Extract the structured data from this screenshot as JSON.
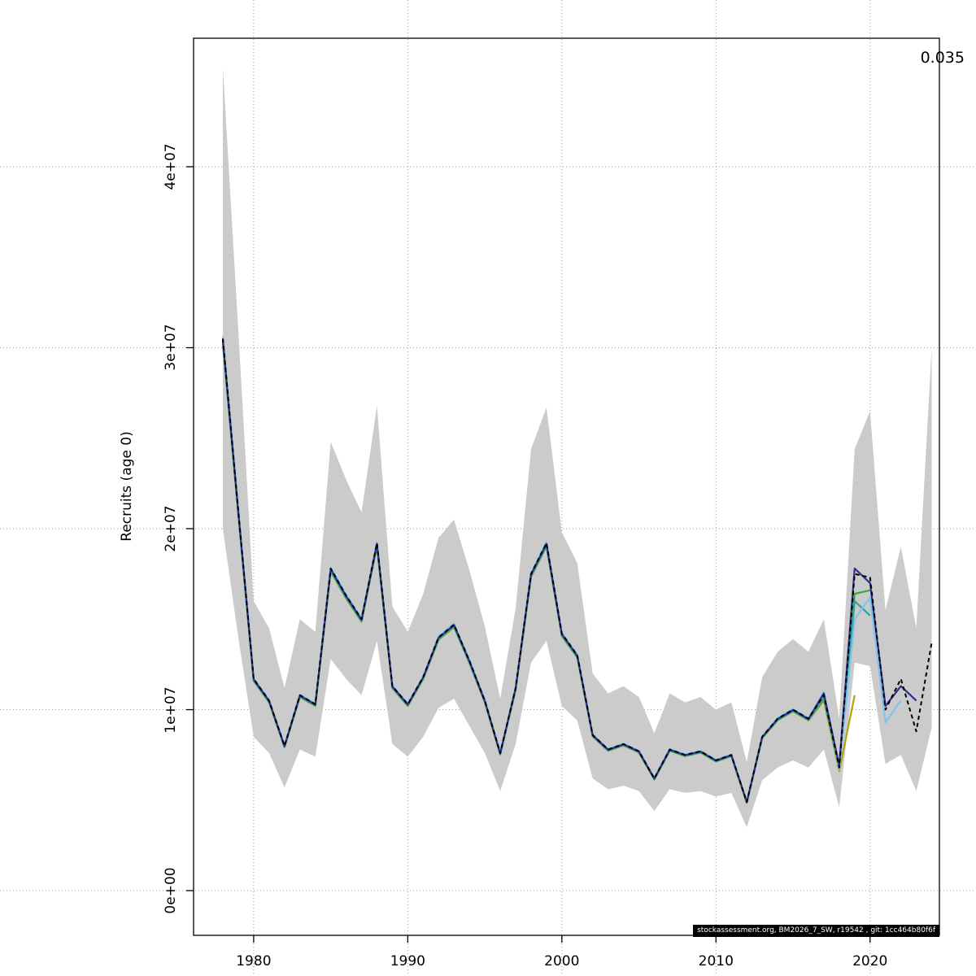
{
  "figure": {
    "annotation_top_right": "0.035",
    "watermark": "stockassessment.org, BM2026_7_SW, r19542 , git: 1cc464b80f6f"
  },
  "chart_data": {
    "type": "line",
    "title": "",
    "xlabel": "",
    "ylabel": "Recruits (age 0)",
    "legend_position": "none",
    "grid": "dotted",
    "annotation_top_right": "0.035",
    "watermark": "stockassessment.org, BM2026_7_SW, r19542 , git: 1cc464b80f6f",
    "x_ticks": [
      1980,
      1990,
      2000,
      2010,
      2020
    ],
    "x_tick_labels": [
      "1980",
      "1990",
      "2000",
      "2010",
      "2020"
    ],
    "y_ticks_millions": [
      0,
      10,
      20,
      30,
      40
    ],
    "y_tick_labels": [
      "0e+00",
      "1e+07",
      "2e+07",
      "3e+07",
      "4e+07"
    ],
    "xlim": [
      1976.1,
      2024.5
    ],
    "ylim_millions": [
      -2.47,
      47.1
    ],
    "unit_note": "values in millions of age-0 recruits (1e6)",
    "years": {
      "start": 1978,
      "end": 2024
    },
    "band": {
      "name": "confidence-band",
      "color": "#cbcbcb",
      "lo_millions": [
        20.0,
        14.0,
        8.5,
        7.6,
        5.7,
        7.8,
        7.4,
        12.8,
        11.7,
        10.8,
        13.8,
        8.1,
        7.4,
        8.5,
        10.1,
        10.6,
        9.1,
        7.6,
        5.5,
        8.1,
        12.6,
        13.8,
        10.2,
        9.4,
        6.2,
        5.6,
        5.8,
        5.5,
        4.4,
        5.6,
        5.4,
        5.5,
        5.2,
        5.4,
        3.5,
        6.1,
        6.8,
        7.2,
        6.8,
        7.8,
        4.6,
        12.6,
        12.4,
        7.0,
        7.5,
        5.5,
        9.0
      ],
      "hi_millions": [
        45.5,
        31.0,
        16.0,
        14.5,
        11.2,
        15.0,
        14.3,
        24.8,
        22.7,
        20.9,
        26.8,
        15.7,
        14.3,
        16.4,
        19.5,
        20.5,
        17.7,
        14.6,
        10.6,
        15.6,
        24.4,
        26.7,
        19.8,
        18.1,
        12.0,
        10.9,
        11.3,
        10.7,
        8.7,
        10.9,
        10.4,
        10.7,
        10.0,
        10.4,
        7.1,
        11.8,
        13.2,
        13.9,
        13.2,
        15.0,
        9.5,
        24.4,
        26.5,
        15.5,
        19.0,
        14.5,
        30.0
      ]
    },
    "base_series": {
      "name": "current-assessment",
      "color": "#000000",
      "style": "dashed",
      "values_millions": [
        30.5,
        21.0,
        11.7,
        10.5,
        8.0,
        10.8,
        10.3,
        17.8,
        16.3,
        15.0,
        19.2,
        11.3,
        10.3,
        11.8,
        14.0,
        14.7,
        12.7,
        10.5,
        7.6,
        11.2,
        17.5,
        19.2,
        14.2,
        13.0,
        8.6,
        7.8,
        8.1,
        7.7,
        6.2,
        7.8,
        7.5,
        7.7,
        7.2,
        7.5,
        4.9,
        8.5,
        9.5,
        10.0,
        9.5,
        10.8,
        6.8,
        17.5,
        17.3,
        10.0,
        11.7,
        8.8,
        13.7
      ]
    },
    "retro_peels": [
      {
        "name": "peel-5-olive",
        "color": "#b3a40e",
        "pre_scale": 0.99,
        "tail_from": 2017,
        "tail_millions": [
          10.5,
          6.6,
          10.8
        ]
      },
      {
        "name": "peel-4-green",
        "color": "#3ea63e",
        "pre_scale": 0.992,
        "tail_from": 2017,
        "tail_millions": [
          10.6,
          6.7,
          16.4,
          16.6
        ]
      },
      {
        "name": "peel-3-teal",
        "color": "#27a59c",
        "pre_scale": 0.994,
        "tail_from": 2017,
        "tail_millions": [
          10.7,
          6.8,
          16.0,
          15.2
        ]
      },
      {
        "name": "peel-2-lightblue",
        "color": "#7ec4e8",
        "pre_scale": 1.004,
        "tail_from": 2017,
        "tail_millions": [
          11.0,
          6.7,
          15.0,
          16.2,
          9.3,
          10.5
        ]
      },
      {
        "name": "peel-1-navy",
        "color": "#2e2e8f",
        "pre_scale": 0.998,
        "tail_from": 2017,
        "tail_millions": [
          10.9,
          6.9,
          17.8,
          17.0,
          10.2,
          11.3,
          10.5
        ]
      }
    ]
  }
}
